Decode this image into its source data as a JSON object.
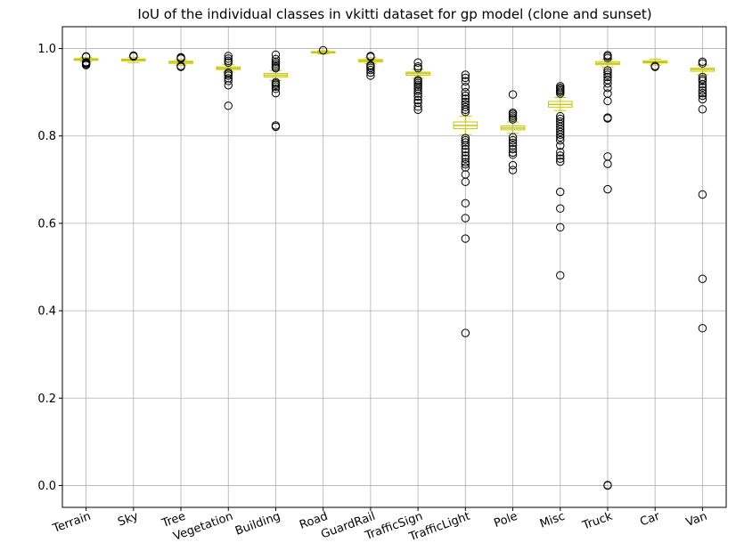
{
  "chart_data": {
    "type": "box",
    "title": "IoU of the individual classes in vkitti dataset for gp model (clone and sunset)",
    "xlabel": "",
    "ylabel": "",
    "ylim": [
      -0.05,
      1.05
    ],
    "yticks": [
      0.0,
      0.2,
      0.4,
      0.6,
      0.8,
      1.0
    ],
    "grid": true,
    "colors": {
      "box": "#c8c800",
      "median": "#c8c800",
      "outlier": "#000000",
      "grid": "#b0b0b0"
    },
    "categories": [
      "Terrain",
      "Sky",
      "Tree",
      "Vegetation",
      "Building",
      "Road",
      "GuardRail",
      "TrafficSign",
      "TrafficLight",
      "Pole",
      "Misc",
      "Truck",
      "Car",
      "Van"
    ],
    "boxes": [
      {
        "q1": 0.973,
        "median": 0.975,
        "q3": 0.977,
        "whisker_low": 0.97,
        "whisker_high": 0.98,
        "outliers": [
          0.962,
          0.964,
          0.966,
          0.967,
          0.968,
          0.969,
          0.981,
          0.982
        ]
      },
      {
        "q1": 0.972,
        "median": 0.974,
        "q3": 0.976,
        "whisker_low": 0.968,
        "whisker_high": 0.98,
        "outliers": [
          0.982,
          0.984
        ]
      },
      {
        "q1": 0.966,
        "median": 0.969,
        "q3": 0.971,
        "whisker_low": 0.962,
        "whisker_high": 0.975,
        "outliers": [
          0.958,
          0.96,
          0.977,
          0.979,
          0.98
        ]
      },
      {
        "q1": 0.952,
        "median": 0.955,
        "q3": 0.958,
        "whisker_low": 0.946,
        "whisker_high": 0.963,
        "outliers": [
          0.869,
          0.916,
          0.926,
          0.932,
          0.938,
          0.942,
          0.945,
          0.968,
          0.972,
          0.977,
          0.983
        ]
      },
      {
        "q1": 0.935,
        "median": 0.939,
        "q3": 0.943,
        "whisker_low": 0.927,
        "whisker_high": 0.95,
        "outliers": [
          0.821,
          0.824,
          0.898,
          0.908,
          0.913,
          0.917,
          0.92,
          0.923,
          0.955,
          0.958,
          0.962,
          0.966,
          0.97,
          0.976,
          0.986
        ]
      },
      {
        "q1": 0.99,
        "median": 0.991,
        "q3": 0.993,
        "whisker_low": 0.988,
        "whisker_high": 0.995,
        "outliers": [
          0.996
        ]
      },
      {
        "q1": 0.969,
        "median": 0.972,
        "q3": 0.975,
        "whisker_low": 0.965,
        "whisker_high": 0.979,
        "outliers": [
          0.938,
          0.945,
          0.951,
          0.956,
          0.96,
          0.962,
          0.981,
          0.983
        ]
      },
      {
        "q1": 0.939,
        "median": 0.943,
        "q3": 0.946,
        "whisker_low": 0.932,
        "whisker_high": 0.952,
        "outliers": [
          0.86,
          0.867,
          0.876,
          0.882,
          0.89,
          0.897,
          0.903,
          0.908,
          0.913,
          0.917,
          0.921,
          0.925,
          0.928,
          0.955,
          0.959,
          0.968
        ]
      },
      {
        "q1": 0.817,
        "median": 0.824,
        "q3": 0.832,
        "whisker_low": 0.803,
        "whisker_high": 0.845,
        "outliers": [
          0.349,
          0.565,
          0.612,
          0.646,
          0.695,
          0.712,
          0.728,
          0.735,
          0.74,
          0.748,
          0.755,
          0.763,
          0.77,
          0.778,
          0.785,
          0.79,
          0.795,
          0.855,
          0.86,
          0.866,
          0.872,
          0.878,
          0.885,
          0.892,
          0.9,
          0.912,
          0.925,
          0.933,
          0.94
        ]
      },
      {
        "q1": 0.814,
        "median": 0.818,
        "q3": 0.823,
        "whisker_low": 0.806,
        "whisker_high": 0.832,
        "outliers": [
          0.722,
          0.733,
          0.757,
          0.762,
          0.77,
          0.778,
          0.784,
          0.79,
          0.797,
          0.838,
          0.842,
          0.846,
          0.85,
          0.853,
          0.895
        ]
      },
      {
        "q1": 0.866,
        "median": 0.872,
        "q3": 0.879,
        "whisker_low": 0.858,
        "whisker_high": 0.888,
        "outliers": [
          0.481,
          0.591,
          0.634,
          0.672,
          0.741,
          0.748,
          0.755,
          0.763,
          0.778,
          0.79,
          0.797,
          0.803,
          0.809,
          0.815,
          0.821,
          0.827,
          0.833,
          0.839,
          0.845,
          0.897,
          0.901,
          0.904,
          0.907,
          0.91,
          0.914
        ]
      },
      {
        "q1": 0.963,
        "median": 0.966,
        "q3": 0.97,
        "whisker_low": 0.957,
        "whisker_high": 0.975,
        "outliers": [
          0.0,
          0.001,
          0.678,
          0.736,
          0.753,
          0.84,
          0.842,
          0.88,
          0.897,
          0.91,
          0.92,
          0.928,
          0.935,
          0.94,
          0.945,
          0.95,
          0.978,
          0.982,
          0.985
        ]
      },
      {
        "q1": 0.967,
        "median": 0.969,
        "q3": 0.972,
        "whisker_low": 0.962,
        "whisker_high": 0.976,
        "outliers": [
          0.958,
          0.96
        ]
      },
      {
        "q1": 0.948,
        "median": 0.952,
        "q3": 0.955,
        "whisker_low": 0.94,
        "whisker_high": 0.962,
        "outliers": [
          0.36,
          0.473,
          0.666,
          0.861,
          0.884,
          0.892,
          0.898,
          0.904,
          0.911,
          0.918,
          0.926,
          0.93,
          0.935,
          0.966,
          0.97
        ]
      }
    ]
  }
}
